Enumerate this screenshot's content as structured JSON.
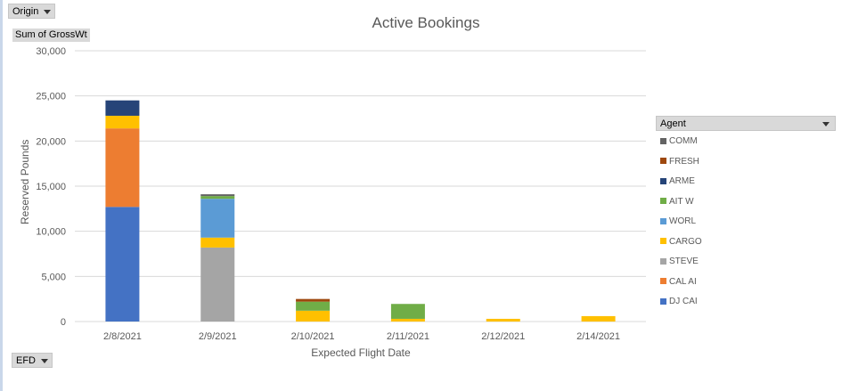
{
  "field_buttons": {
    "origin": "Origin",
    "value_field": "Sum of GrossWt",
    "axis_field": "EFD",
    "legend_field": "Agent"
  },
  "colors": {
    "DJ CAI": "#4472c4",
    "CAL AI": "#ed7d31",
    "STEVE": "#a5a5a5",
    "CARGO": "#ffc000",
    "WORL": "#5b9bd5",
    "AIT W": "#70ad47",
    "ARME": "#264478",
    "FRESH": "#9e480e",
    "COMM": "#636363"
  },
  "chart_data": {
    "type": "bar",
    "stacked": true,
    "title": "Active Bookings",
    "xlabel": "Expected Flight Date",
    "ylabel": "Reserved Pounds",
    "ylim": [
      0,
      30000
    ],
    "yticks": [
      "0",
      "5,000",
      "10,000",
      "15,000",
      "20,000",
      "25,000",
      "30,000"
    ],
    "grid": true,
    "legend_position": "right",
    "categories": [
      "2/8/2021",
      "2/9/2021",
      "2/10/2021",
      "2/11/2021",
      "2/12/2021",
      "2/14/2021"
    ],
    "series": [
      {
        "name": "DJ CAI",
        "values": [
          12700,
          0,
          0,
          0,
          0,
          0
        ]
      },
      {
        "name": "CAL AI",
        "values": [
          8700,
          0,
          0,
          0,
          0,
          0
        ]
      },
      {
        "name": "STEVE",
        "values": [
          0,
          8200,
          0,
          0,
          0,
          0
        ]
      },
      {
        "name": "CARGO",
        "values": [
          1400,
          1100,
          1200,
          300,
          300,
          600
        ]
      },
      {
        "name": "WORL",
        "values": [
          0,
          4300,
          0,
          0,
          0,
          0
        ]
      },
      {
        "name": "AIT W",
        "values": [
          0,
          300,
          1000,
          1650,
          0,
          0
        ]
      },
      {
        "name": "ARME",
        "values": [
          1700,
          0,
          0,
          0,
          0,
          0
        ]
      },
      {
        "name": "FRESH",
        "values": [
          0,
          0,
          300,
          0,
          0,
          0
        ]
      },
      {
        "name": "COMM",
        "values": [
          0,
          200,
          0,
          0,
          0,
          0
        ]
      }
    ]
  },
  "legend_order": [
    "COMM",
    "FRESH",
    "ARME",
    "AIT W",
    "WORL",
    "CARGO",
    "STEVE",
    "CAL AI",
    "DJ CAI"
  ]
}
